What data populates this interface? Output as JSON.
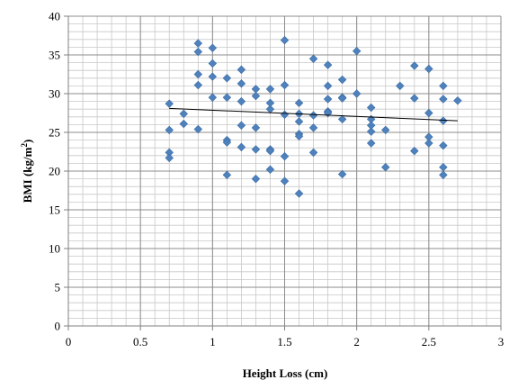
{
  "chart_data": {
    "type": "scatter",
    "title": "",
    "xlabel": "Height Loss (cm)",
    "ylabel_main": "BMI (kg/m",
    "ylabel_sup": "2",
    "ylabel_close": ")",
    "xlim": [
      0,
      3
    ],
    "ylim": [
      0,
      40
    ],
    "x_major_ticks": [
      0,
      0.5,
      1,
      1.5,
      2,
      2.5,
      3
    ],
    "x_tick_labels": [
      "0",
      "0.5",
      "1",
      "1.5",
      "2",
      "2.5",
      "3"
    ],
    "y_major_ticks": [
      0,
      5,
      10,
      15,
      20,
      25,
      30,
      35,
      40
    ],
    "y_tick_labels": [
      "0",
      "5",
      "10",
      "15",
      "20",
      "25",
      "30",
      "35",
      "40"
    ],
    "x_minor_step": 0.1,
    "y_minor_step": 1,
    "grid": true,
    "legend": "none",
    "marker": "diamond",
    "marker_color": "#4F81BD",
    "trendline": {
      "x": [
        0.7,
        2.7
      ],
      "y": [
        28.1,
        26.5
      ],
      "color": "#000000"
    },
    "points": [
      {
        "x": 0.7,
        "y": 28.7
      },
      {
        "x": 0.7,
        "y": 25.3
      },
      {
        "x": 0.7,
        "y": 22.4
      },
      {
        "x": 0.7,
        "y": 21.7
      },
      {
        "x": 0.8,
        "y": 27.4
      },
      {
        "x": 0.8,
        "y": 26.1
      },
      {
        "x": 0.9,
        "y": 36.5
      },
      {
        "x": 0.9,
        "y": 35.4
      },
      {
        "x": 0.9,
        "y": 32.5
      },
      {
        "x": 0.9,
        "y": 31.1
      },
      {
        "x": 0.9,
        "y": 25.4
      },
      {
        "x": 1.0,
        "y": 35.9
      },
      {
        "x": 1.0,
        "y": 33.9
      },
      {
        "x": 1.0,
        "y": 32.2
      },
      {
        "x": 1.0,
        "y": 29.5
      },
      {
        "x": 1.1,
        "y": 32.0
      },
      {
        "x": 1.1,
        "y": 29.5
      },
      {
        "x": 1.1,
        "y": 24.0
      },
      {
        "x": 1.1,
        "y": 23.7
      },
      {
        "x": 1.1,
        "y": 19.5
      },
      {
        "x": 1.2,
        "y": 33.1
      },
      {
        "x": 1.2,
        "y": 31.3
      },
      {
        "x": 1.2,
        "y": 29.0
      },
      {
        "x": 1.2,
        "y": 25.9
      },
      {
        "x": 1.2,
        "y": 23.1
      },
      {
        "x": 1.3,
        "y": 30.6
      },
      {
        "x": 1.3,
        "y": 29.7
      },
      {
        "x": 1.3,
        "y": 25.6
      },
      {
        "x": 1.3,
        "y": 22.8
      },
      {
        "x": 1.3,
        "y": 19.0
      },
      {
        "x": 1.4,
        "y": 30.6
      },
      {
        "x": 1.4,
        "y": 28.8
      },
      {
        "x": 1.4,
        "y": 28.0
      },
      {
        "x": 1.4,
        "y": 22.8
      },
      {
        "x": 1.4,
        "y": 22.6
      },
      {
        "x": 1.4,
        "y": 20.2
      },
      {
        "x": 1.5,
        "y": 36.9
      },
      {
        "x": 1.5,
        "y": 31.1
      },
      {
        "x": 1.5,
        "y": 27.3
      },
      {
        "x": 1.5,
        "y": 21.9
      },
      {
        "x": 1.5,
        "y": 18.7
      },
      {
        "x": 1.6,
        "y": 28.8
      },
      {
        "x": 1.6,
        "y": 27.4
      },
      {
        "x": 1.6,
        "y": 26.4
      },
      {
        "x": 1.6,
        "y": 24.8
      },
      {
        "x": 1.6,
        "y": 24.5
      },
      {
        "x": 1.6,
        "y": 17.1
      },
      {
        "x": 1.7,
        "y": 34.5
      },
      {
        "x": 1.7,
        "y": 27.2
      },
      {
        "x": 1.7,
        "y": 25.6
      },
      {
        "x": 1.7,
        "y": 22.4
      },
      {
        "x": 1.8,
        "y": 33.7
      },
      {
        "x": 1.8,
        "y": 31.0
      },
      {
        "x": 1.8,
        "y": 29.3
      },
      {
        "x": 1.8,
        "y": 27.7
      },
      {
        "x": 1.8,
        "y": 27.5
      },
      {
        "x": 1.9,
        "y": 31.8
      },
      {
        "x": 1.9,
        "y": 29.5
      },
      {
        "x": 1.9,
        "y": 29.4
      },
      {
        "x": 1.9,
        "y": 26.7
      },
      {
        "x": 1.9,
        "y": 19.6
      },
      {
        "x": 2.0,
        "y": 35.5
      },
      {
        "x": 2.0,
        "y": 30.0
      },
      {
        "x": 2.1,
        "y": 28.2
      },
      {
        "x": 2.1,
        "y": 26.7
      },
      {
        "x": 2.1,
        "y": 25.9
      },
      {
        "x": 2.1,
        "y": 25.1
      },
      {
        "x": 2.1,
        "y": 23.6
      },
      {
        "x": 2.2,
        "y": 25.3
      },
      {
        "x": 2.2,
        "y": 20.5
      },
      {
        "x": 2.3,
        "y": 31.0
      },
      {
        "x": 2.4,
        "y": 33.6
      },
      {
        "x": 2.4,
        "y": 29.4
      },
      {
        "x": 2.4,
        "y": 22.6
      },
      {
        "x": 2.5,
        "y": 33.2
      },
      {
        "x": 2.5,
        "y": 27.5
      },
      {
        "x": 2.5,
        "y": 24.4
      },
      {
        "x": 2.5,
        "y": 23.6
      },
      {
        "x": 2.6,
        "y": 31.0
      },
      {
        "x": 2.6,
        "y": 29.3
      },
      {
        "x": 2.6,
        "y": 26.5
      },
      {
        "x": 2.6,
        "y": 23.3
      },
      {
        "x": 2.6,
        "y": 20.5
      },
      {
        "x": 2.6,
        "y": 19.5
      },
      {
        "x": 2.7,
        "y": 29.1
      }
    ]
  }
}
